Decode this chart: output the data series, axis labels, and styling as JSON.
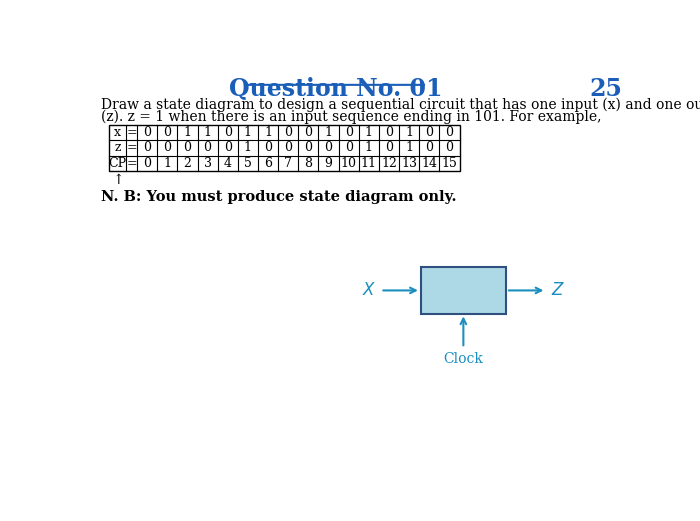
{
  "title": "Question No. 01",
  "title_color": "#1a5eb8",
  "page_number": "25",
  "description_line1": "Draw a state diagram to design a sequential circuit that has one input (x) and one output",
  "description_line2": "(z). z = 1 when there is an input sequence ending in 101. For example,",
  "table": {
    "row_labels": [
      "x",
      "z",
      "CP"
    ],
    "x_values": [
      0,
      0,
      1,
      1,
      0,
      1,
      1,
      0,
      0,
      1,
      0,
      1,
      0,
      1,
      0,
      0
    ],
    "z_values": [
      0,
      0,
      0,
      0,
      0,
      1,
      0,
      0,
      0,
      0,
      0,
      1,
      0,
      1,
      0,
      0
    ],
    "cp_values": [
      0,
      1,
      2,
      3,
      4,
      5,
      6,
      7,
      8,
      9,
      10,
      11,
      12,
      13,
      14,
      15
    ]
  },
  "note_text": "N. B: You must produce state diagram only.",
  "box_fill_color": "#add8e6",
  "box_edge_color": "#2f4f7f",
  "arrow_color": "#1a8fbf",
  "clock_text_color": "#1a8fbf",
  "background_color": "#ffffff",
  "text_color": "#000000"
}
